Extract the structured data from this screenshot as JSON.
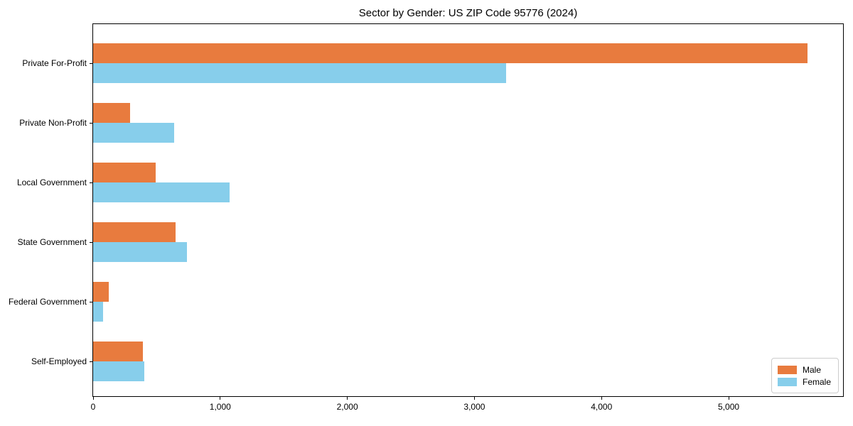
{
  "chart_data": {
    "type": "bar",
    "orientation": "horizontal",
    "title": "Sector by Gender: US ZIP Code 95776 (2024)",
    "categories": [
      "Private For-Profit",
      "Private Non-Profit",
      "Local Government",
      "State Government",
      "Federal Government",
      "Self-Employed"
    ],
    "series": [
      {
        "name": "Male",
        "color": "#e87b3e",
        "values": [
          5620,
          290,
          490,
          650,
          125,
          390
        ]
      },
      {
        "name": "Female",
        "color": "#87ceeb",
        "values": [
          3250,
          640,
          1075,
          740,
          80,
          400
        ]
      }
    ],
    "xlabel": "",
    "ylabel": "",
    "xlim": [
      0,
      5900
    ],
    "x_ticks": [
      0,
      1000,
      2000,
      3000,
      4000,
      5000
    ],
    "x_tick_labels": [
      "0",
      "1,000",
      "2,000",
      "3,000",
      "4,000",
      "5,000"
    ],
    "grid": false,
    "legend_position": "lower right",
    "colors": {
      "axis": "#000000",
      "legend_border": "#cccccc"
    }
  }
}
